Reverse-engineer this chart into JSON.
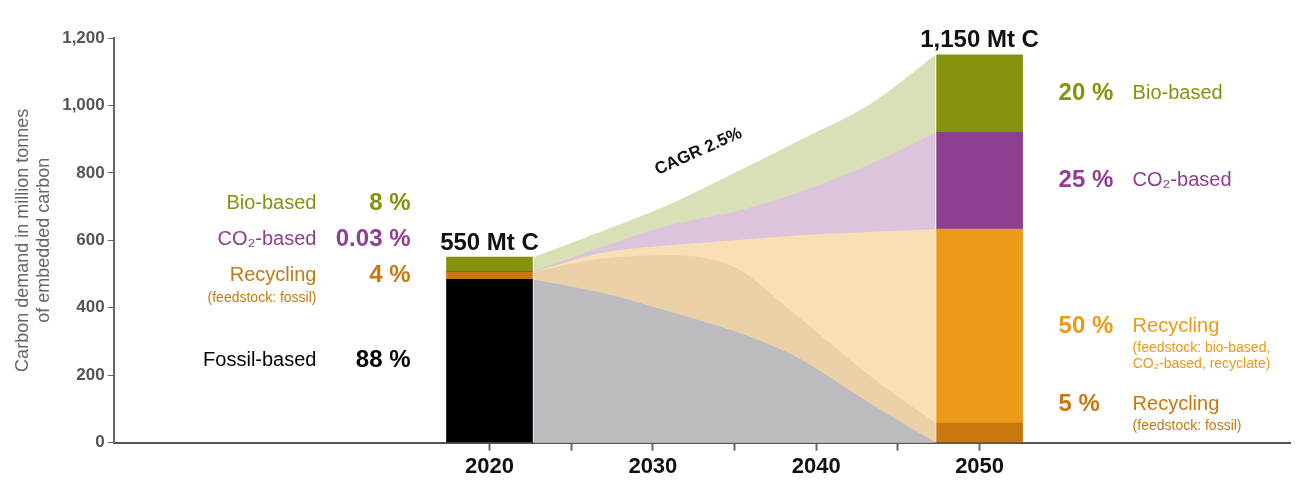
{
  "chart_data": {
    "type": "bar",
    "ylabel": "Carbon demand in million tonnes\nof embedded carbon",
    "xlim": [
      1997,
      2069
    ],
    "xticks": [
      2020,
      {
        "value": 2025,
        "label": null
      },
      2030,
      {
        "value": 2035,
        "label": null
      },
      2040,
      {
        "value": 2045,
        "label": null
      },
      2050
    ],
    "ylim": [
      0,
      1200
    ],
    "yticks": [
      0,
      200,
      400,
      600,
      800,
      {
        "value": 1000,
        "label": "1,000"
      },
      {
        "value": 1200,
        "label": "1,200"
      }
    ],
    "grid": false,
    "legend": false,
    "annotations": [
      "88 %",
      "4 %",
      "0.03 %",
      "8 %",
      "5 %",
      "50 %",
      "25 %",
      "20 %",
      "CAGR 2.5%",
      {
        "text": "550 Mt C",
        "x": 2020,
        "y": 550
      },
      {
        "text": "1,150 Mt C",
        "x": 2050,
        "y": 1150
      }
    ],
    "series": [
      {
        "name": "Fossil-based",
        "color": "#000000",
        "x": [
          2020
        ],
        "values": [
          484
        ],
        "base": [
          0
        ]
      },
      {
        "name": "Recycling\n(feedstock: fossil)",
        "color": "#c8780f",
        "x": [
          2020,
          2050
        ],
        "values": [
          22,
          58
        ],
        "base": [
          484,
          0
        ]
      },
      {
        "name": "Recycling\n(feedstock: bio-based,\nCO₂-based, recyclate)",
        "color": "#ec9a17",
        "x": [
          2050
        ],
        "values": [
          575
        ],
        "base": [
          58
        ]
      },
      {
        "name": "CO₂-based",
        "color": "#8e3f8f",
        "x": [
          2020,
          2050
        ],
        "values": [
          2,
          287
        ],
        "base": [
          506,
          633
        ]
      },
      {
        "name": "Bio-based",
        "color": "#85930c",
        "x": [
          2020,
          2050
        ],
        "values": [
          42,
          230
        ],
        "base": [
          508,
          920
        ]
      },
      {
        "type": "area",
        "color": "#bcbbc0",
        "x": [
          2022.7,
          2026.8,
          2031,
          2035,
          2038.5,
          2043.5,
          2047.3
        ],
        "values": [
          484,
          445,
          389,
          330,
          261,
          110,
          0
        ]
      },
      {
        "type": "area",
        "color": "#ead1a8",
        "x": [
          2022.7,
          2026.8,
          2031,
          2035,
          2038.5,
          2043.5,
          2047.3
        ],
        "values": [
          506,
          545,
          556,
          520,
          389,
          190,
          58
        ]
      },
      {
        "type": "area",
        "color": "#f8dfb5",
        "x": [
          2022.7,
          2026.8,
          2031,
          2035,
          2038.5,
          2043.5,
          2047.3
        ],
        "values": [
          506,
          562,
          585,
          600,
          613,
          625,
          633
        ]
      },
      {
        "type": "area",
        "color": "#dcc5dc",
        "x": [
          2022.7,
          2026.8,
          2031,
          2035,
          2038.5,
          2043.5,
          2047.3
        ],
        "values": [
          508,
          null,
          645,
          685,
          735,
          830,
          920
        ]
      },
      {
        "type": "area",
        "color": "#d9dfb6",
        "x": [
          2022.7,
          2026.8,
          2031,
          2035,
          2038.5,
          2043.5,
          2047.3
        ],
        "values": [
          550,
          625,
          706,
          800,
          885,
          1010,
          1150
        ]
      }
    ]
  }
}
